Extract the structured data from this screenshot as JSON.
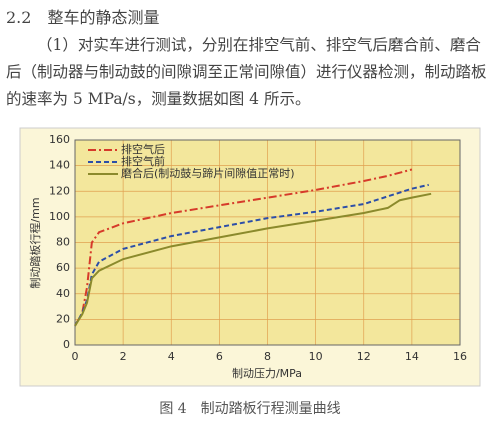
{
  "document": {
    "heading": "2.2　整车的静态测量",
    "paragraph": "（1）对实车进行测试，分别在排空气前、排空气后磨合前、磨合后（制动器与制动鼓的间隙调至正常间隙值）进行仪器检测，制动踏板的速率为 5 MPa/s，测量数据如图 4 所示。",
    "caption": "图 4　制动踏板行程测量曲线"
  },
  "chart_data": {
    "type": "line",
    "x_label": "制动压力/MPa",
    "y_label": "制动踏板行程/mm",
    "xlim": [
      0,
      16
    ],
    "xticks": [
      0,
      2,
      4,
      6,
      8,
      10,
      12,
      14,
      16
    ],
    "ylim": [
      0,
      160
    ],
    "yticks": [
      0,
      20,
      40,
      60,
      80,
      100,
      120,
      140,
      160
    ],
    "grid": true,
    "series": [
      {
        "name": "排空气后",
        "color": "#d63a2a",
        "style": "dashdot",
        "x": [
          0,
          0.3,
          0.5,
          0.7,
          1,
          2,
          4,
          6,
          8,
          10,
          12,
          13,
          14
        ],
        "values": [
          15,
          25,
          45,
          80,
          88,
          95,
          103,
          109,
          115,
          121,
          128,
          132,
          137
        ]
      },
      {
        "name": "排空气前",
        "color": "#2c4ea8",
        "style": "dashed",
        "x": [
          0,
          0.3,
          0.5,
          0.7,
          1,
          2,
          4,
          6,
          8,
          10,
          12,
          13,
          14,
          14.7
        ],
        "values": [
          15,
          25,
          35,
          55,
          65,
          75,
          85,
          92,
          99,
          104,
          110,
          116,
          122,
          125
        ]
      },
      {
        "name": "磨合后(制动鼓与蹄片间隙值正常时)",
        "color": "#8b8a2c",
        "style": "solid",
        "x": [
          0,
          0.3,
          0.5,
          0.7,
          1,
          2,
          4,
          6,
          8,
          10,
          12,
          13,
          13.5,
          14,
          14.8
        ],
        "values": [
          15,
          24,
          33,
          52,
          58,
          67,
          77,
          84,
          91,
          97,
          103,
          107,
          113,
          115,
          118
        ]
      }
    ]
  }
}
